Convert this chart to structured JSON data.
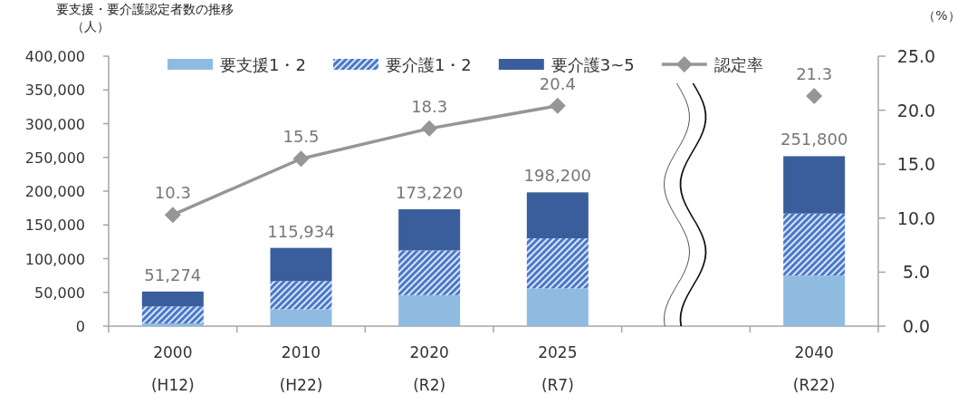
{
  "chart_data": {
    "type": "bar",
    "stacked": true,
    "title": "要支援・要介護認定者数の推移",
    "ylabel": "（人）",
    "y2label": "（%）",
    "categories": [
      "2000 (H12)",
      "2010 (H22)",
      "2020 (R2)",
      "2025 (R7)",
      null,
      "2040 (R22)"
    ],
    "series": [
      {
        "name": "要支援1・2",
        "color": "#8fbbe0",
        "values": [
          4000,
          25000,
          46000,
          56000,
          null,
          75000
        ]
      },
      {
        "name": "要介護1・2",
        "color": "#4a78c8",
        "values": [
          25274,
          41934,
          66220,
          74200,
          null,
          91800
        ]
      },
      {
        "name": "要介護3~5",
        "color": "#3a5d9c",
        "values": [
          22000,
          49000,
          61000,
          68000,
          null,
          85000
        ]
      },
      {
        "name": "認定率",
        "type": "line",
        "axis": "y2",
        "color": "#969696",
        "marker": "diamond",
        "data_labels": true,
        "values": [
          10.3,
          15.5,
          18.3,
          20.4,
          null,
          21.3
        ]
      }
    ],
    "totals": [
      "51,274",
      "115,934",
      "173,220",
      "198,200",
      null,
      "251,800"
    ],
    "ylim": [
      0,
      400000
    ],
    "yticks": [
      {
        "value": 0,
        "label": "0"
      },
      {
        "value": 50000,
        "label": "50,000"
      },
      {
        "value": 100000,
        "label": "100,000"
      },
      {
        "value": 150000,
        "label": "150,000"
      },
      {
        "value": 200000,
        "label": "200,000"
      },
      {
        "value": 250000,
        "label": "250,000"
      },
      {
        "value": 300000,
        "label": "300,000"
      },
      {
        "value": 350000,
        "label": "350,000"
      },
      {
        "value": 400000,
        "label": "400,000"
      }
    ],
    "y2lim": [
      0,
      25
    ],
    "y2ticks": [
      {
        "value": 0,
        "label": "0.0"
      },
      {
        "value": 5,
        "label": "5.0"
      },
      {
        "value": 10,
        "label": "10.0"
      },
      {
        "value": 15,
        "label": "15.0"
      },
      {
        "value": 20,
        "label": "20.0"
      },
      {
        "value": 25,
        "label": "25.0"
      }
    ],
    "legend": "top",
    "grid": false
  }
}
